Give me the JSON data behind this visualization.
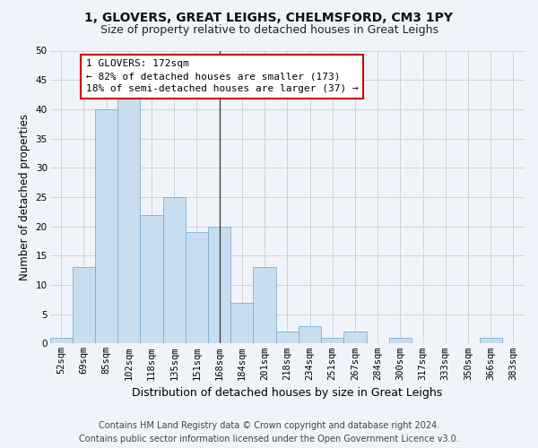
{
  "title1": "1, GLOVERS, GREAT LEIGHS, CHELMSFORD, CM3 1PY",
  "title2": "Size of property relative to detached houses in Great Leighs",
  "xlabel": "Distribution of detached houses by size in Great Leighs",
  "ylabel": "Number of detached properties",
  "categories": [
    "52sqm",
    "69sqm",
    "85sqm",
    "102sqm",
    "118sqm",
    "135sqm",
    "151sqm",
    "168sqm",
    "184sqm",
    "201sqm",
    "218sqm",
    "234sqm",
    "251sqm",
    "267sqm",
    "284sqm",
    "300sqm",
    "317sqm",
    "333sqm",
    "350sqm",
    "366sqm",
    "383sqm"
  ],
  "values": [
    1,
    13,
    40,
    42,
    22,
    25,
    19,
    20,
    7,
    13,
    2,
    3,
    1,
    2,
    0,
    1,
    0,
    0,
    0,
    1,
    0
  ],
  "bar_color": "#c9ddf0",
  "bar_edge_color": "#7aafd4",
  "highlight_index": 7,
  "highlight_line_color": "#333333",
  "annotation_line1": "1 GLOVERS: 172sqm",
  "annotation_line2": "← 82% of detached houses are smaller (173)",
  "annotation_line3": "18% of semi-detached houses are larger (37) →",
  "annotation_box_color": "#ffffff",
  "annotation_edge_color": "#cc0000",
  "ylim": [
    0,
    50
  ],
  "yticks": [
    0,
    5,
    10,
    15,
    20,
    25,
    30,
    35,
    40,
    45,
    50
  ],
  "grid_color": "#cccccc",
  "footer1": "Contains HM Land Registry data © Crown copyright and database right 2024.",
  "footer2": "Contains public sector information licensed under the Open Government Licence v3.0.",
  "bg_color": "#f0f4fa",
  "title1_fontsize": 10,
  "title2_fontsize": 9,
  "ylabel_fontsize": 8.5,
  "xlabel_fontsize": 9,
  "tick_fontsize": 7.5,
  "annotation_fontsize": 8,
  "footer_fontsize": 7
}
